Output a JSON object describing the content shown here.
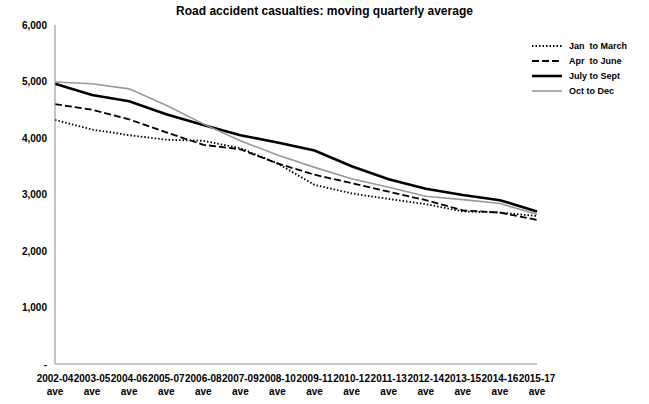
{
  "chart_data": {
    "type": "line",
    "title": "Road accident casualties: moving quarterly average",
    "categories": [
      "2002-04 ave",
      "2003-05 ave",
      "2004-06 ave",
      "2005-07 ave",
      "2006-08 ave",
      "2007-09 ave",
      "2008-10 ave",
      "2009-11 ave",
      "2010-12 ave",
      "2011-13 ave",
      "2012-14 ave",
      "2013-15 ave",
      "2014-16 ave",
      "2015-17 ave"
    ],
    "series": [
      {
        "name": "Jan  to March",
        "color": "#000000",
        "line_style": "dotted",
        "values": [
          4320,
          4150,
          4050,
          3970,
          3950,
          3820,
          3550,
          3170,
          3020,
          2920,
          2830,
          2700,
          2680,
          2620
        ]
      },
      {
        "name": "Apr  to June",
        "color": "#000000",
        "line_style": "dashed",
        "values": [
          4600,
          4500,
          4330,
          4100,
          3880,
          3800,
          3550,
          3350,
          3200,
          3050,
          2900,
          2720,
          2680,
          2550
        ]
      },
      {
        "name": "July to Sept",
        "color": "#000000",
        "line_style": "solid",
        "values": [
          4960,
          4760,
          4650,
          4420,
          4230,
          4050,
          3920,
          3780,
          3500,
          3270,
          3100,
          2990,
          2900,
          2700
        ]
      },
      {
        "name": "Oct to Dec",
        "color": "#999999",
        "line_style": "solid",
        "values": [
          4990,
          4960,
          4870,
          4580,
          4250,
          3950,
          3700,
          3480,
          3280,
          3130,
          2970,
          2910,
          2840,
          2650
        ]
      }
    ],
    "ylim": [
      0,
      6000
    ],
    "yticks": [
      {
        "value": 0,
        "label": "-"
      },
      {
        "value": 1000,
        "label": "1,000"
      },
      {
        "value": 2000,
        "label": "2,000"
      },
      {
        "value": 3000,
        "label": "3,000"
      },
      {
        "value": 4000,
        "label": "4,000"
      },
      {
        "value": 5000,
        "label": "5,000"
      },
      {
        "value": 6000,
        "label": "6,000"
      }
    ],
    "grid": false,
    "legend": "upper right",
    "marker": "none"
  }
}
